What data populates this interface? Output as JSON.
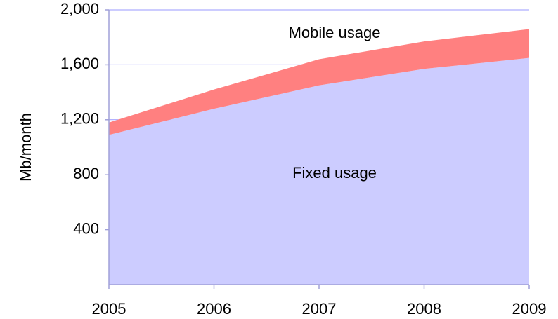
{
  "chart_data": {
    "type": "stacked_area",
    "ylabel": "Mb/month",
    "categories": [
      "2005",
      "2006",
      "2007",
      "2008",
      "2009"
    ],
    "series": [
      {
        "name": "Fixed usage",
        "color": "#ccccff",
        "values": [
          1090,
          1280,
          1450,
          1570,
          1650
        ]
      },
      {
        "name": "Mobile usage",
        "color": "#ff8080",
        "values": [
          90,
          140,
          190,
          200,
          210
        ]
      }
    ],
    "ylim": [
      0,
      2000
    ],
    "yticks": [
      {
        "value": 400,
        "label": "400"
      },
      {
        "value": 800,
        "label": "800"
      },
      {
        "value": 1200,
        "label": "1,200"
      },
      {
        "value": 1600,
        "label": "1,600"
      },
      {
        "value": 2000,
        "label": "2,000"
      }
    ],
    "grid": true
  }
}
